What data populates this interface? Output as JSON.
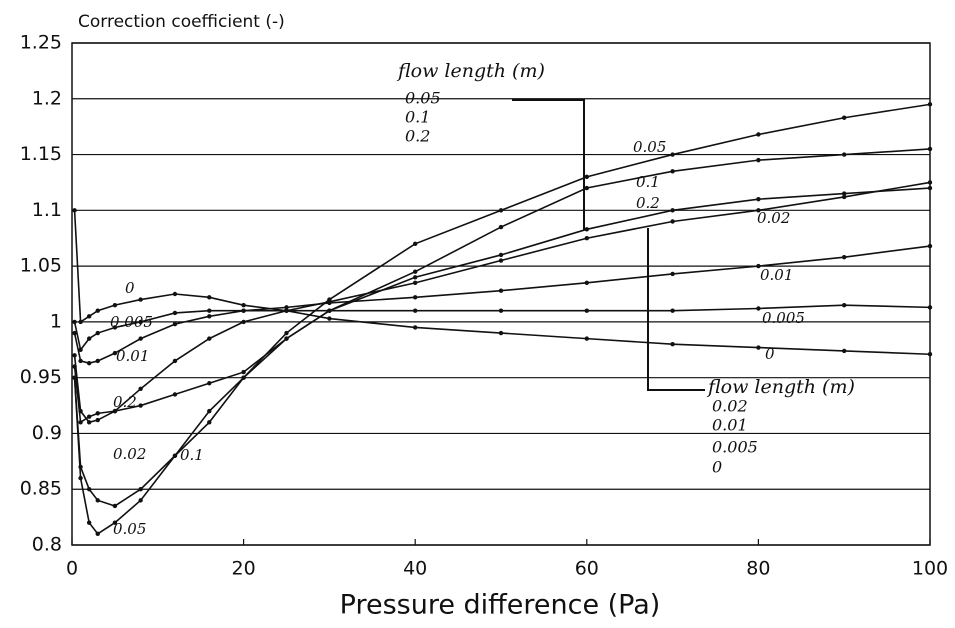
{
  "chart_data": {
    "type": "line",
    "title": "Correction coefficient (-)",
    "xlabel": "Pressure difference (Pa)",
    "x": [
      0.3,
      1,
      2,
      3,
      5,
      8,
      12,
      16,
      20,
      25,
      30,
      40,
      50,
      60,
      70,
      80,
      90,
      100
    ],
    "series": [
      {
        "name": "0",
        "color": "#111111",
        "values": [
          1.1,
          1.0,
          1.005,
          1.01,
          1.015,
          1.02,
          1.025,
          1.022,
          1.015,
          1.01,
          1.003,
          0.995,
          0.99,
          0.985,
          0.98,
          0.977,
          0.974,
          0.971
        ]
      },
      {
        "name": "0.005",
        "color": "#111111",
        "values": [
          1.0,
          0.975,
          0.985,
          0.99,
          0.995,
          1.0,
          1.008,
          1.01,
          1.01,
          1.01,
          1.01,
          1.01,
          1.01,
          1.01,
          1.01,
          1.012,
          1.015,
          1.013
        ]
      },
      {
        "name": "0.01",
        "color": "#111111",
        "values": [
          0.99,
          0.965,
          0.963,
          0.965,
          0.972,
          0.985,
          0.998,
          1.005,
          1.01,
          1.013,
          1.017,
          1.022,
          1.028,
          1.035,
          1.043,
          1.05,
          1.058,
          1.068
        ]
      },
      {
        "name": "0.02",
        "color": "#111111",
        "values": [
          0.97,
          0.92,
          0.91,
          0.912,
          0.92,
          0.94,
          0.965,
          0.985,
          1.0,
          1.01,
          1.018,
          1.035,
          1.055,
          1.075,
          1.09,
          1.1,
          1.112,
          1.125
        ]
      },
      {
        "name": "0.05",
        "color": "#111111",
        "values": [
          0.95,
          0.86,
          0.82,
          0.81,
          0.82,
          0.84,
          0.88,
          0.92,
          0.95,
          0.99,
          1.02,
          1.07,
          1.1,
          1.13,
          1.15,
          1.168,
          1.183,
          1.195
        ]
      },
      {
        "name": "0.1",
        "color": "#111111",
        "values": [
          0.95,
          0.87,
          0.85,
          0.84,
          0.835,
          0.85,
          0.88,
          0.91,
          0.95,
          0.985,
          1.01,
          1.045,
          1.085,
          1.12,
          1.135,
          1.145,
          1.15,
          1.155
        ]
      },
      {
        "name": "0.2",
        "color": "#111111",
        "values": [
          0.96,
          0.91,
          0.915,
          0.918,
          0.92,
          0.925,
          0.935,
          0.945,
          0.955,
          0.985,
          1.01,
          1.04,
          1.06,
          1.083,
          1.1,
          1.11,
          1.115,
          1.12
        ]
      }
    ],
    "xlim": [
      0,
      100
    ],
    "xticks": [
      0,
      20,
      40,
      60,
      80,
      100
    ],
    "ylim": [
      0.8,
      1.25
    ],
    "yticks": [
      0.8,
      0.85,
      0.9,
      0.95,
      1,
      1.05,
      1.1,
      1.15,
      1.2,
      1.25
    ],
    "grid": true,
    "annotations": [
      {
        "title": "flow length (m)",
        "items": [
          "0.05",
          "0.1",
          "0.2"
        ]
      },
      {
        "title": "flow length (m)",
        "items": [
          "0.02",
          "0.01",
          "0.005",
          "0"
        ]
      }
    ]
  }
}
